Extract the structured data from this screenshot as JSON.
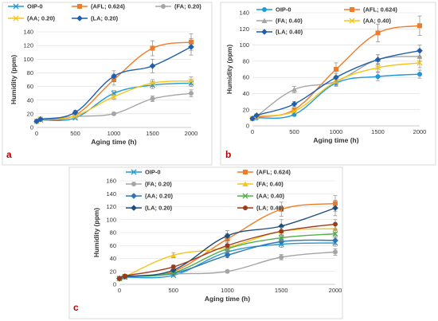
{
  "chart_data": [
    {
      "type": "line",
      "panel_label": "a",
      "x": [
        0,
        500,
        1000,
        1500,
        2000
      ],
      "xlabel": "Aging time (h)",
      "ylabel": "Humidity (ppm)",
      "xlim": [
        0,
        2000
      ],
      "ylim": [
        0,
        140
      ],
      "xticks": [
        0,
        500,
        1000,
        1500,
        2000
      ],
      "yticks": [
        0,
        20,
        40,
        60,
        80,
        100,
        120,
        140
      ],
      "grid": true,
      "legend_position": "top",
      "series": [
        {
          "name": "OIP-0",
          "color": "#1f9ad6",
          "marker": "x",
          "values": [
            9,
            11,
            14,
            50,
            62,
            65
          ],
          "x": [
            0,
            50,
            500,
            1000,
            1500,
            2000
          ],
          "errors": [
            0,
            0,
            2,
            4,
            5,
            5
          ]
        },
        {
          "name": "(AFL; 0.624)",
          "color": "#f07c2a",
          "marker": "square",
          "values": [
            9,
            12,
            18,
            70,
            116,
            125
          ],
          "x": [
            0,
            50,
            500,
            1000,
            1500,
            2000
          ],
          "errors": [
            0,
            0,
            2,
            8,
            11,
            12
          ]
        },
        {
          "name": "(FA; 0.20)",
          "color": "#a5a5a5",
          "marker": "circle",
          "values": [
            9,
            12,
            16,
            20,
            42,
            50
          ],
          "x": [
            0,
            50,
            500,
            1000,
            1500,
            2000
          ],
          "errors": [
            0,
            0,
            2,
            2,
            4,
            5
          ]
        },
        {
          "name": "(AA; 0.20)",
          "color": "#f5c518",
          "marker": "x",
          "values": [
            9,
            12,
            17,
            45,
            65,
            68
          ],
          "x": [
            0,
            50,
            500,
            1000,
            1500,
            2000
          ],
          "errors": [
            0,
            0,
            2,
            4,
            5,
            6
          ]
        },
        {
          "name": "(LA; 0.20)",
          "color": "#1f5fad",
          "marker": "diamond",
          "values": [
            9,
            12,
            22,
            75,
            90,
            118
          ],
          "x": [
            0,
            50,
            500,
            1000,
            1500,
            2000
          ],
          "errors": [
            0,
            0,
            3,
            8,
            10,
            12
          ]
        }
      ]
    },
    {
      "type": "line",
      "panel_label": "b",
      "x": [
        0,
        500,
        1000,
        1500,
        2000
      ],
      "xlabel": "Aging time (h)",
      "ylabel": "Humidity (ppm)",
      "xlim": [
        0,
        2000
      ],
      "ylim": [
        0,
        140
      ],
      "xticks": [
        0,
        500,
        1000,
        1500,
        2000
      ],
      "yticks": [
        0,
        20,
        40,
        60,
        80,
        100,
        120,
        140
      ],
      "grid": true,
      "legend_position": "top",
      "series": [
        {
          "name": "OIP-0",
          "color": "#1f9ad6",
          "marker": "circle",
          "values": [
            9,
            10,
            14,
            53,
            61,
            64
          ],
          "x": [
            0,
            50,
            500,
            1000,
            1500,
            2000
          ],
          "errors": [
            0,
            0,
            2,
            4,
            5,
            5
          ]
        },
        {
          "name": "(AFL; 0.624)",
          "color": "#f07c2a",
          "marker": "square",
          "values": [
            9,
            11,
            20,
            70,
            115,
            124
          ],
          "x": [
            0,
            50,
            500,
            1000,
            1500,
            2000
          ],
          "errors": [
            0,
            0,
            2,
            8,
            11,
            12
          ]
        },
        {
          "name": "(FA; 0.40)",
          "color": "#a5a5a5",
          "marker": "triangle",
          "values": [
            9,
            12,
            45,
            55,
            82,
            86
          ],
          "x": [
            0,
            50,
            500,
            1000,
            1500,
            2000
          ],
          "errors": [
            0,
            0,
            4,
            5,
            6,
            6
          ]
        },
        {
          "name": "(AA; 0.40)",
          "color": "#f5c518",
          "marker": "x",
          "values": [
            9,
            12,
            18,
            55,
            72,
            78
          ],
          "x": [
            0,
            50,
            500,
            1000,
            1500,
            2000
          ],
          "errors": [
            0,
            0,
            2,
            5,
            5,
            6
          ]
        },
        {
          "name": "(LA; 0.40)",
          "color": "#1f5fad",
          "marker": "diamond",
          "values": [
            9,
            13,
            27,
            60,
            82,
            93
          ],
          "x": [
            0,
            50,
            500,
            1000,
            1500,
            2000
          ],
          "errors": [
            0,
            0,
            3,
            5,
            6,
            7
          ]
        }
      ]
    },
    {
      "type": "line",
      "panel_label": "c",
      "x": [
        0,
        500,
        1000,
        1500,
        2000
      ],
      "xlabel": "Aging time  (h)",
      "ylabel": "Humidity (ppm)",
      "xlim": [
        0,
        2000
      ],
      "ylim": [
        0,
        160
      ],
      "xticks": [
        0,
        500,
        1000,
        1500,
        2000
      ],
      "yticks": [
        0,
        20,
        40,
        60,
        80,
        100,
        120,
        140,
        160
      ],
      "grid": true,
      "legend_position": "top",
      "series": [
        {
          "name": "OIP-0",
          "color": "#1f9ad6",
          "marker": "x",
          "values": [
            9,
            11,
            14,
            50,
            62,
            64
          ],
          "x": [
            0,
            50,
            500,
            1000,
            1500,
            2000
          ],
          "errors": [
            0,
            0,
            2,
            4,
            5,
            5
          ]
        },
        {
          "name": "(AFL; 0.624)",
          "color": "#f07c2a",
          "marker": "square",
          "values": [
            9,
            12,
            20,
            70,
            116,
            125
          ],
          "x": [
            0,
            50,
            500,
            1000,
            1500,
            2000
          ],
          "errors": [
            0,
            0,
            2,
            8,
            11,
            12
          ]
        },
        {
          "name": "(FA; 0.20)",
          "color": "#a5a5a5",
          "marker": "circle",
          "values": [
            9,
            12,
            16,
            20,
            42,
            50
          ],
          "x": [
            0,
            50,
            500,
            1000,
            1500,
            2000
          ],
          "errors": [
            0,
            0,
            2,
            2,
            4,
            5
          ]
        },
        {
          "name": "(FA; 0.40)",
          "color": "#f5c518",
          "marker": "triangle",
          "values": [
            9,
            12,
            45,
            57,
            82,
            86
          ],
          "x": [
            0,
            50,
            500,
            1000,
            1500,
            2000
          ],
          "errors": [
            0,
            0,
            4,
            5,
            6,
            6
          ]
        },
        {
          "name": "(AA; 0.20)",
          "color": "#2e75b6",
          "marker": "diamond",
          "values": [
            9,
            12,
            17,
            45,
            66,
            68
          ],
          "x": [
            0,
            50,
            500,
            1000,
            1500,
            2000
          ],
          "errors": [
            0,
            0,
            2,
            4,
            5,
            6
          ]
        },
        {
          "name": "(AA; 0.40)",
          "color": "#4fae4a",
          "marker": "x",
          "values": [
            9,
            12,
            18,
            55,
            72,
            78
          ],
          "x": [
            0,
            50,
            500,
            1000,
            1500,
            2000
          ],
          "errors": [
            0,
            0,
            2,
            5,
            5,
            6
          ]
        },
        {
          "name": "(LA; 0.20)",
          "color": "#1f4e79",
          "marker": "diamond",
          "values": [
            9,
            12,
            22,
            75,
            90,
            118
          ],
          "x": [
            0,
            50,
            500,
            1000,
            1500,
            2000
          ],
          "errors": [
            0,
            0,
            3,
            8,
            10,
            12
          ]
        },
        {
          "name": "(LA; 0.40)",
          "color": "#9e3a1a",
          "marker": "circle",
          "values": [
            9,
            13,
            27,
            60,
            82,
            93
          ],
          "x": [
            0,
            50,
            500,
            1000,
            1500,
            2000
          ],
          "errors": [
            0,
            0,
            3,
            5,
            6,
            7
          ]
        }
      ]
    }
  ]
}
